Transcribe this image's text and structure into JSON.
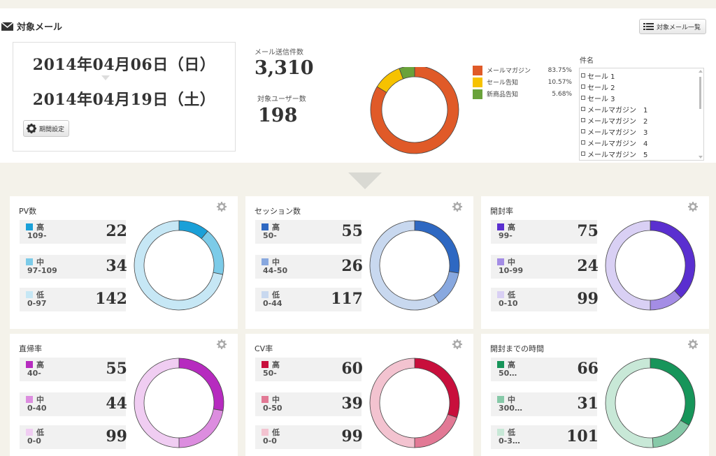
{
  "header": {
    "title": "対象メール",
    "list_button": "対象メール一覧"
  },
  "period": {
    "start": "2014年04月06日（日）",
    "end": "2014年04月19日（土）",
    "button": "期間設定"
  },
  "stats": {
    "sent_label": "メール送信件数",
    "sent_value": "3,310",
    "users_label": "対象ユーザー数",
    "users_value": "198"
  },
  "distribution": {
    "items": [
      {
        "name": "メールマガジン",
        "pct": "83.75%",
        "value": 83.75,
        "color": "#e05a28"
      },
      {
        "name": "セール告知",
        "pct": "10.57%",
        "value": 10.57,
        "color": "#f6c200"
      },
      {
        "name": "新商品告知",
        "pct": "5.68%",
        "value": 5.68,
        "color": "#6aa23a"
      }
    ]
  },
  "subjects": {
    "title": "件名",
    "items": [
      "セール 1",
      "セール 2",
      "セール 3",
      "メールマガジン　1",
      "メールマガジン　2",
      "メールマガジン　3",
      "メールマガジン　4",
      "メールマガジン　5"
    ]
  },
  "cards": [
    {
      "title": "PV数",
      "rows": [
        {
          "level": "高",
          "range": "109-",
          "value": 22,
          "color": "#1aa0d8"
        },
        {
          "level": "中",
          "range": "97-109",
          "value": 34,
          "color": "#7ccbe8"
        },
        {
          "level": "低",
          "range": "0-97",
          "value": 142,
          "color": "#c6e7f5"
        }
      ]
    },
    {
      "title": "セッション数",
      "rows": [
        {
          "level": "高",
          "range": "50-",
          "value": 55,
          "color": "#2e68c2"
        },
        {
          "level": "中",
          "range": "44-50",
          "value": 26,
          "color": "#88a8df"
        },
        {
          "level": "低",
          "range": "0-44",
          "value": 117,
          "color": "#c8d8ef"
        }
      ]
    },
    {
      "title": "開封率",
      "rows": [
        {
          "level": "高",
          "range": "99-",
          "value": 75,
          "color": "#5a2fd0"
        },
        {
          "level": "中",
          "range": "10-99",
          "value": 24,
          "color": "#a48de5"
        },
        {
          "level": "低",
          "range": "0-10",
          "value": 99,
          "color": "#d9d0f4"
        }
      ]
    },
    {
      "title": "直帰率",
      "rows": [
        {
          "level": "高",
          "range": "40-",
          "value": 55,
          "color": "#b62bbf"
        },
        {
          "level": "中",
          "range": "0-40",
          "value": 44,
          "color": "#dc8ddf"
        },
        {
          "level": "低",
          "range": "0-0",
          "value": 99,
          "color": "#f0cdf2"
        }
      ]
    },
    {
      "title": "CV率",
      "rows": [
        {
          "level": "高",
          "range": "50-",
          "value": 60,
          "color": "#c80f3c"
        },
        {
          "level": "中",
          "range": "0-50",
          "value": 39,
          "color": "#e27995"
        },
        {
          "level": "低",
          "range": "0-0",
          "value": 99,
          "color": "#f3c3d0"
        }
      ]
    },
    {
      "title": "開封までの時間",
      "rows": [
        {
          "level": "高",
          "range": "50…",
          "value": 66,
          "color": "#17955a"
        },
        {
          "level": "中",
          "range": "300…",
          "value": 31,
          "color": "#86c9a8"
        },
        {
          "level": "低",
          "range": "0-3…",
          "value": 101,
          "color": "#c8e8d7"
        }
      ]
    }
  ]
}
